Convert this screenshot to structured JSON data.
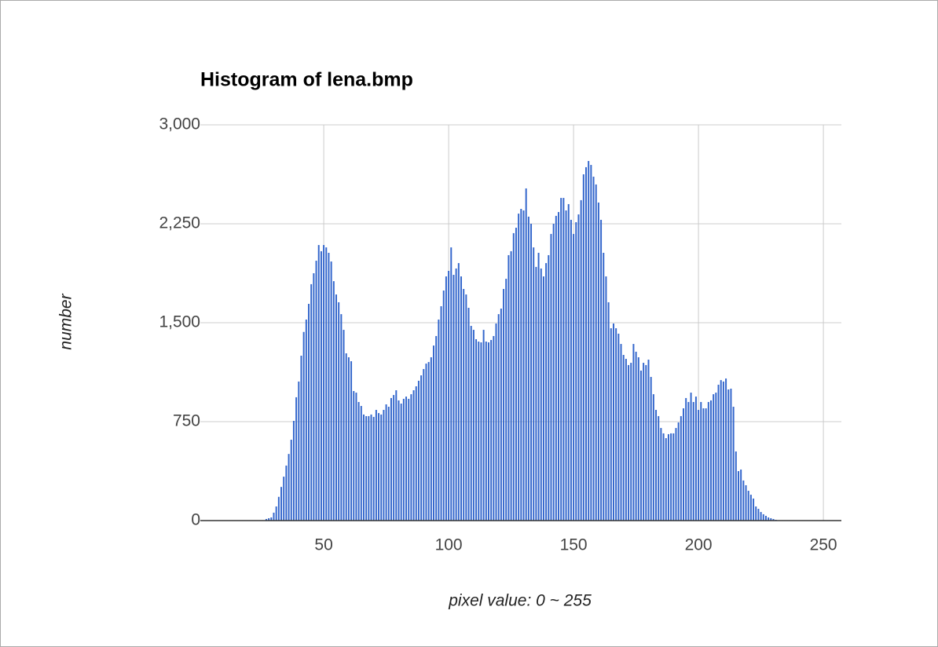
{
  "chart_data": {
    "type": "bar",
    "title": "Histogram of lena.bmp",
    "xlabel": "pixel value: 0 ~ 255",
    "ylabel": "number",
    "color": "#3366cc",
    "grid": true,
    "xlim": [
      0.6,
      257.2
    ],
    "xticks": [
      50,
      100,
      150,
      200,
      250
    ],
    "ylim": [
      0,
      3000
    ],
    "yticks": [
      0,
      750,
      {
        "value": 1500,
        "label": "1,500"
      },
      {
        "value": 2250,
        "label": "2,250"
      },
      {
        "value": 3000,
        "label": "3,000"
      }
    ],
    "x": [
      27,
      28,
      29,
      30,
      31,
      32,
      33,
      34,
      35,
      36,
      37,
      38,
      39,
      40,
      41,
      42,
      43,
      44,
      45,
      46,
      47,
      48,
      49,
      50,
      51,
      52,
      53,
      54,
      55,
      56,
      57,
      58,
      59,
      60,
      61,
      62,
      63,
      64,
      65,
      66,
      67,
      68,
      69,
      70,
      71,
      72,
      73,
      74,
      75,
      76,
      77,
      78,
      79,
      80,
      81,
      82,
      83,
      84,
      85,
      86,
      87,
      88,
      89,
      90,
      91,
      92,
      93,
      94,
      95,
      96,
      97,
      98,
      99,
      100,
      101,
      102,
      103,
      104,
      105,
      106,
      107,
      108,
      109,
      110,
      111,
      112,
      113,
      114,
      115,
      116,
      117,
      118,
      119,
      120,
      121,
      122,
      123,
      124,
      125,
      126,
      127,
      128,
      129,
      130,
      131,
      132,
      133,
      134,
      135,
      136,
      137,
      138,
      139,
      140,
      141,
      142,
      143,
      144,
      145,
      146,
      147,
      148,
      149,
      150,
      151,
      152,
      153,
      154,
      155,
      156,
      157,
      158,
      159,
      160,
      161,
      162,
      163,
      164,
      165,
      166,
      167,
      168,
      169,
      170,
      171,
      172,
      173,
      174,
      175,
      176,
      177,
      178,
      179,
      180,
      181,
      182,
      183,
      184,
      185,
      186,
      187,
      188,
      189,
      190,
      191,
      192,
      193,
      194,
      195,
      196,
      197,
      198,
      199,
      200,
      201,
      202,
      203,
      204,
      205,
      206,
      207,
      208,
      209,
      210,
      211,
      212,
      213,
      214,
      215,
      216,
      217,
      218,
      219,
      220,
      221,
      222,
      223,
      224,
      225,
      226,
      227,
      228,
      229,
      230,
      231
    ],
    "values": [
      12,
      18,
      24,
      60,
      107,
      180,
      255,
      333,
      417,
      505,
      613,
      756,
      935,
      1054,
      1250,
      1430,
      1524,
      1643,
      1792,
      1875,
      1970,
      2089,
      2042,
      2089,
      2071,
      2030,
      1964,
      1815,
      1714,
      1655,
      1565,
      1446,
      1268,
      1238,
      1208,
      982,
      970,
      899,
      869,
      804,
      792,
      792,
      804,
      786,
      839,
      815,
      804,
      839,
      881,
      863,
      929,
      952,
      988,
      911,
      887,
      923,
      940,
      923,
      958,
      988,
      1018,
      1060,
      1101,
      1149,
      1190,
      1202,
      1238,
      1327,
      1399,
      1524,
      1625,
      1744,
      1851,
      1893,
      2071,
      1863,
      1911,
      1952,
      1851,
      1756,
      1714,
      1613,
      1476,
      1446,
      1375,
      1357,
      1351,
      1446,
      1357,
      1351,
      1369,
      1399,
      1494,
      1565,
      1607,
      1756,
      1833,
      2012,
      2042,
      2179,
      2220,
      2327,
      2363,
      2351,
      2518,
      2304,
      2250,
      2071,
      1923,
      2030,
      1911,
      1851,
      1952,
      2012,
      2173,
      2250,
      2310,
      2339,
      2446,
      2446,
      2351,
      2399,
      2280,
      2173,
      2262,
      2321,
      2429,
      2625,
      2679,
      2726,
      2696,
      2607,
      2548,
      2411,
      2280,
      2030,
      1851,
      1655,
      1458,
      1494,
      1458,
      1417,
      1339,
      1256,
      1226,
      1179,
      1196,
      1339,
      1280,
      1238,
      1137,
      1196,
      1179,
      1220,
      1089,
      958,
      839,
      792,
      702,
      661,
      625,
      655,
      661,
      661,
      702,
      744,
      792,
      851,
      929,
      899,
      970,
      899,
      940,
      839,
      899,
      851,
      851,
      899,
      911,
      958,
      970,
      1030,
      1065,
      1054,
      1077,
      994,
      1000,
      863,
      524,
      375,
      387,
      304,
      268,
      226,
      196,
      167,
      107,
      89,
      65,
      48,
      36,
      24,
      18,
      12,
      6
    ]
  }
}
